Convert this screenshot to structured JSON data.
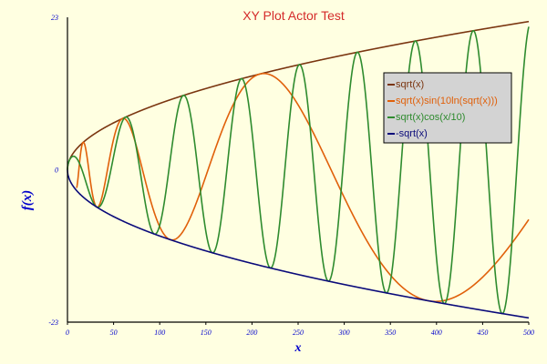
{
  "chart_data": {
    "type": "line",
    "title": "XY Plot Actor Test",
    "xlabel": "x",
    "ylabel": "f(x)",
    "xlim": [
      0,
      500
    ],
    "ylim": [
      -23,
      23
    ],
    "x_ticks": [
      "0",
      "50",
      "100",
      "150",
      "200",
      "250",
      "300",
      "350",
      "400",
      "450",
      "500"
    ],
    "y_ticks": [
      "-23",
      "0",
      "23"
    ],
    "grid": false,
    "legend_position": "top-right",
    "colors": {
      "title": "#d42b2b",
      "axis_label": "#0000cc",
      "tick_label": "#0000cc",
      "axis": "#000000",
      "legend_bg": "#d3d3d3",
      "legend_border": "#000000"
    },
    "series": [
      {
        "name": "sqrt(x)",
        "color": "#7a3510",
        "function": "sqrt(x)",
        "x": [
          0,
          50,
          100,
          150,
          200,
          250,
          300,
          350,
          400,
          450,
          500
        ],
        "values": [
          0,
          7.07,
          10.0,
          12.25,
          14.14,
          15.81,
          17.32,
          18.71,
          20.0,
          21.21,
          22.36
        ]
      },
      {
        "name": "sqrt(x)sin(10ln(sqrt(x)))",
        "color": "#e0600a",
        "function": "sqrt(x)*sin(10*ln(sqrt(x)))",
        "x": [
          10,
          50,
          100,
          150,
          200,
          250,
          300,
          350,
          400,
          450,
          500
        ],
        "values": [
          3.1,
          0.56,
          -9.92,
          -3.75,
          12.44,
          12.29,
          1.6,
          -10.5,
          -19.94,
          -17.59,
          -7.74
        ]
      },
      {
        "name": "sqrt(x)cos(x/10)",
        "color": "#2e8b2e",
        "function": "sqrt(x)*cos(x/10)",
        "x": [
          0,
          50,
          100,
          150,
          200,
          250,
          300,
          350,
          400,
          450,
          500
        ],
        "values": [
          0,
          2.01,
          -8.39,
          -9.32,
          5.77,
          15.76,
          2.68,
          -17.32,
          -13.33,
          8.69,
          21.54
        ]
      },
      {
        "name": "-sqrt(x)",
        "color": "#0a0a7a",
        "function": "-sqrt(x)",
        "x": [
          0,
          50,
          100,
          150,
          200,
          250,
          300,
          350,
          400,
          450,
          500
        ],
        "values": [
          0,
          -7.07,
          -10.0,
          -12.25,
          -14.14,
          -15.81,
          -17.32,
          -18.71,
          -20.0,
          -21.21,
          -22.36
        ]
      }
    ]
  }
}
